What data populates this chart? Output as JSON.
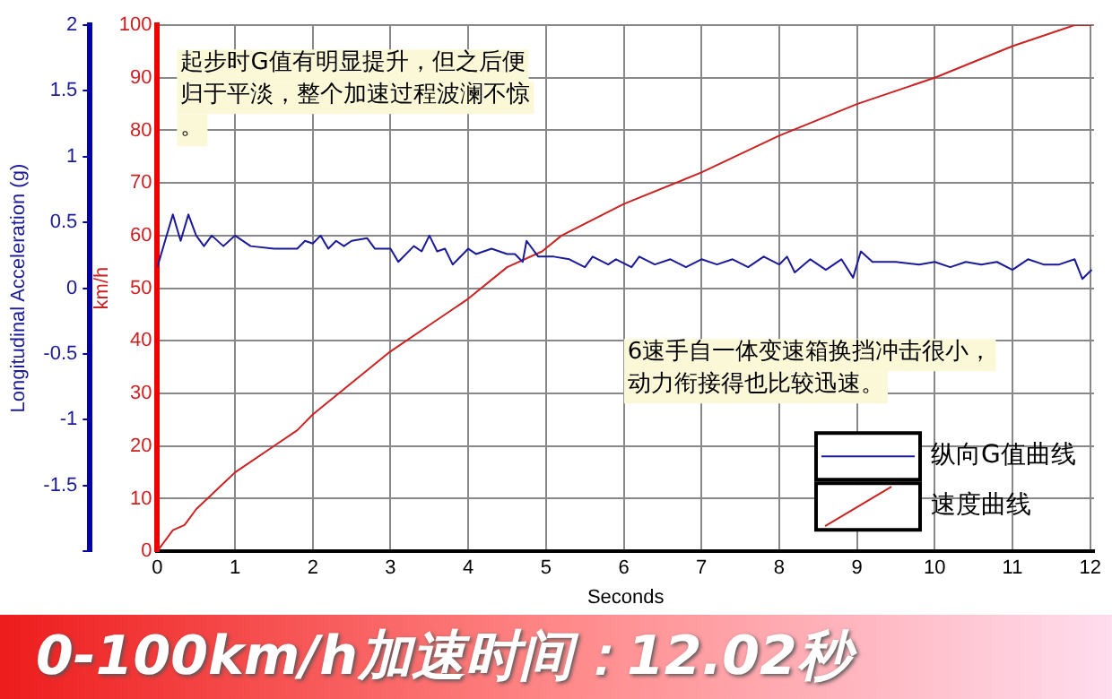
{
  "chart_data": {
    "type": "line",
    "title": "0-100km/h加速时间：12.02秒",
    "xlabel": "Seconds",
    "ylabel": "km/h",
    "y2label": "Longitudinal Acceleration (g)",
    "xlim": [
      0,
      12.05
    ],
    "xticks": [
      0,
      1,
      2,
      3,
      4,
      5,
      6,
      7,
      8,
      9,
      10,
      11,
      12
    ],
    "ylim": [
      0,
      100
    ],
    "yticks": [
      0,
      10,
      20,
      30,
      40,
      50,
      60,
      70,
      80,
      90,
      100
    ],
    "y2lim": [
      -2,
      2
    ],
    "y2ticks": [
      {
        "value": -2,
        "label": null
      },
      -1.5,
      -1,
      -0.5,
      0,
      0.5,
      1,
      1.5,
      2
    ],
    "grid": true,
    "legend": "bottom right",
    "marker": "none",
    "line_style": "solid",
    "annotations": [
      "起步时G值有明显提升，但之后便归于平淡，整个加速过程波澜不惊。",
      "6速手自一体变速箱换挡冲击很小，动力衔接得也比较迅速。"
    ],
    "series": [
      {
        "name": "纵向G值曲线",
        "color": "#1a1a9a",
        "axis": "y2",
        "x": [
          0,
          0.1,
          0.2,
          0.3,
          0.4,
          0.5,
          0.6,
          0.7,
          0.85,
          1.0,
          1.2,
          1.5,
          1.8,
          1.9,
          2.0,
          2.1,
          2.2,
          2.3,
          2.4,
          2.5,
          2.7,
          2.8,
          3.0,
          3.1,
          3.3,
          3.4,
          3.5,
          3.6,
          3.7,
          3.8,
          4.0,
          4.1,
          4.3,
          4.5,
          4.6,
          4.7,
          4.75,
          4.9,
          5.1,
          5.3,
          5.5,
          5.6,
          5.8,
          5.9,
          6.1,
          6.2,
          6.4,
          6.6,
          6.8,
          7.0,
          7.2,
          7.4,
          7.6,
          7.8,
          8.0,
          8.1,
          8.2,
          8.4,
          8.6,
          8.8,
          8.95,
          9.05,
          9.2,
          9.5,
          9.8,
          10.0,
          10.2,
          10.4,
          10.6,
          10.8,
          11.0,
          11.2,
          11.4,
          11.6,
          11.8,
          11.9,
          12.02
        ],
        "values": [
          0.16,
          0.36,
          0.56,
          0.36,
          0.56,
          0.4,
          0.32,
          0.4,
          0.32,
          0.4,
          0.32,
          0.3,
          0.3,
          0.36,
          0.34,
          0.4,
          0.3,
          0.36,
          0.32,
          0.36,
          0.38,
          0.3,
          0.3,
          0.2,
          0.32,
          0.28,
          0.4,
          0.28,
          0.3,
          0.18,
          0.3,
          0.26,
          0.3,
          0.26,
          0.26,
          0.2,
          0.36,
          0.24,
          0.24,
          0.22,
          0.16,
          0.24,
          0.18,
          0.22,
          0.16,
          0.24,
          0.18,
          0.22,
          0.16,
          0.22,
          0.18,
          0.22,
          0.16,
          0.24,
          0.18,
          0.24,
          0.12,
          0.22,
          0.14,
          0.22,
          0.08,
          0.28,
          0.2,
          0.2,
          0.18,
          0.2,
          0.16,
          0.2,
          0.18,
          0.2,
          0.14,
          0.22,
          0.18,
          0.18,
          0.22,
          0.07,
          0.14
        ]
      },
      {
        "name": "速度曲线",
        "color": "#cc2222",
        "axis": "y",
        "x": [
          0,
          0.2,
          0.35,
          0.5,
          1,
          1.5,
          1.8,
          2,
          2.5,
          3,
          3.5,
          3.7,
          4,
          4.5,
          4.95,
          5.2,
          6,
          7,
          8,
          9,
          10,
          11,
          11.8,
          12.02
        ],
        "values": [
          0,
          4,
          5,
          8,
          15,
          20,
          23,
          26,
          32,
          38,
          43,
          45,
          48,
          54,
          57,
          60,
          66,
          72,
          79,
          85,
          90,
          96,
          100,
          100
        ]
      }
    ]
  }
}
